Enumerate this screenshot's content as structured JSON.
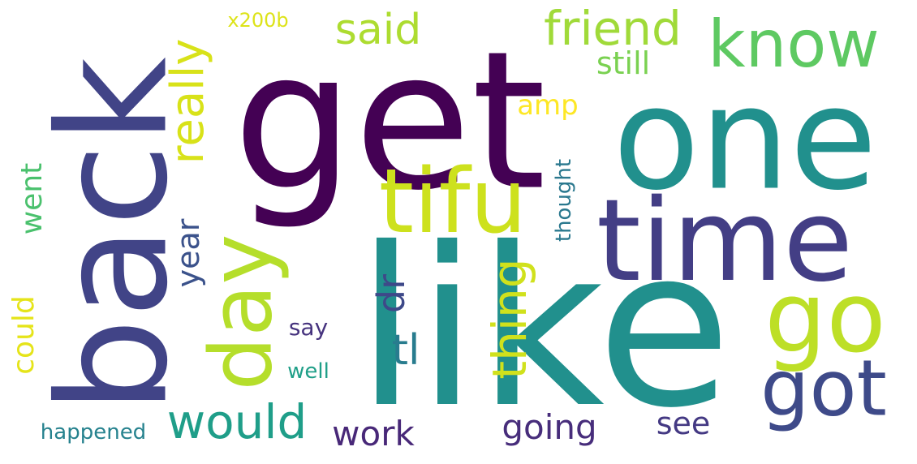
{
  "wordcloud": {
    "words": [
      {
        "key": "like",
        "text": "like",
        "color": "#21908d"
      },
      {
        "key": "get",
        "text": "get",
        "color": "#440154"
      },
      {
        "key": "one",
        "text": "one",
        "color": "#21908d"
      },
      {
        "key": "back",
        "text": "back",
        "color": "#414487"
      },
      {
        "key": "time",
        "text": "time",
        "color": "#433e85"
      },
      {
        "key": "tifu",
        "text": "tifu",
        "color": "#cde11d"
      },
      {
        "key": "day",
        "text": "day",
        "color": "#b5de2b"
      },
      {
        "key": "go",
        "text": "go",
        "color": "#bddf26"
      },
      {
        "key": "got",
        "text": "got",
        "color": "#3e4a89"
      },
      {
        "key": "know",
        "text": "know",
        "color": "#5ec962"
      },
      {
        "key": "friend",
        "text": "friend",
        "color": "#a0da39"
      },
      {
        "key": "said",
        "text": "said",
        "color": "#addc30"
      },
      {
        "key": "really",
        "text": "really",
        "color": "#d8e219"
      },
      {
        "key": "would",
        "text": "would",
        "color": "#1f9e89"
      },
      {
        "key": "thing",
        "text": "thing",
        "color": "#d0e11c"
      },
      {
        "key": "still",
        "text": "still",
        "color": "#7ad151"
      },
      {
        "key": "amp",
        "text": "amp",
        "color": "#fde725"
      },
      {
        "key": "went",
        "text": "went",
        "color": "#4ac16d"
      },
      {
        "key": "year",
        "text": "year",
        "color": "#3b528b"
      },
      {
        "key": "could",
        "text": "could",
        "color": "#e5e419"
      },
      {
        "key": "dr",
        "text": "dr",
        "color": "#3e4989"
      },
      {
        "key": "tl",
        "text": "tl",
        "color": "#287c8e"
      },
      {
        "key": "thought",
        "text": "thought",
        "color": "#2a788e"
      },
      {
        "key": "say",
        "text": "say",
        "color": "#46337e"
      },
      {
        "key": "well",
        "text": "well",
        "color": "#1f9f88"
      },
      {
        "key": "work",
        "text": "work",
        "color": "#482878"
      },
      {
        "key": "going",
        "text": "going",
        "color": "#472d7b"
      },
      {
        "key": "see",
        "text": "see",
        "color": "#443983"
      },
      {
        "key": "happened",
        "text": "happened",
        "color": "#26828e"
      },
      {
        "key": "x200b",
        "text": "x200b",
        "color": "#dde318"
      }
    ]
  }
}
